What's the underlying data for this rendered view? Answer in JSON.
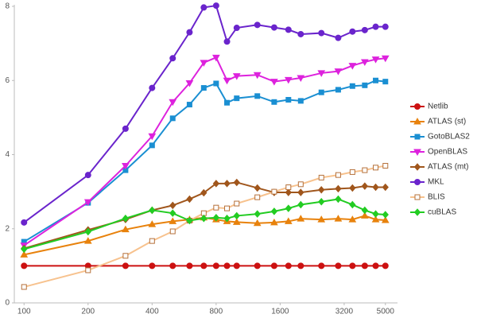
{
  "chart_data": {
    "type": "line",
    "x_scale": "log",
    "legend": "right",
    "grid": false,
    "x": [
      100,
      200,
      300,
      400,
      500,
      600,
      700,
      800,
      900,
      1000,
      1250,
      1500,
      1750,
      2000,
      2500,
      3000,
      3500,
      4000,
      4500,
      5000
    ],
    "xlim": [
      90,
      5700
    ],
    "xticks": [
      100,
      200,
      400,
      800,
      1600,
      3200,
      5000
    ],
    "ylim": [
      0,
      8
    ],
    "yticks": [
      0,
      2,
      4,
      6,
      8
    ],
    "series": [
      {
        "name": "Netlib",
        "color": "#cc1111",
        "marker": "circle",
        "values": [
          1,
          1,
          1,
          1,
          1,
          1,
          1,
          1,
          1,
          1,
          1,
          1,
          1,
          1,
          1,
          1,
          1,
          1,
          1,
          1
        ]
      },
      {
        "name": "ATLAS (st)",
        "color": "#e8820c",
        "marker": "triangle-up",
        "values": [
          1.3,
          1.67,
          1.98,
          2.12,
          2.2,
          2.25,
          2.3,
          2.25,
          2.2,
          2.18,
          2.15,
          2.17,
          2.2,
          2.27,
          2.25,
          2.27,
          2.25,
          2.35,
          2.25,
          2.23
        ]
      },
      {
        "name": "GotoBLAS2",
        "color": "#1a8fd2",
        "marker": "square",
        "values": [
          1.65,
          2.7,
          3.58,
          4.25,
          4.98,
          5.35,
          5.8,
          5.92,
          5.4,
          5.52,
          5.58,
          5.42,
          5.48,
          5.45,
          5.68,
          5.75,
          5.85,
          5.87,
          6.0,
          5.97
        ]
      },
      {
        "name": "OpenBLAS",
        "color": "#dd22dd",
        "marker": "triangle-down",
        "values": [
          1.55,
          2.72,
          3.7,
          4.5,
          5.42,
          5.93,
          6.48,
          6.62,
          6.0,
          6.12,
          6.15,
          5.97,
          6.02,
          6.07,
          6.2,
          6.25,
          6.4,
          6.5,
          6.57,
          6.6
        ]
      },
      {
        "name": "ATLAS (mt)",
        "color": "#a0561c",
        "marker": "diamond",
        "values": [
          1.47,
          1.97,
          2.25,
          2.5,
          2.63,
          2.8,
          2.97,
          3.22,
          3.22,
          3.25,
          3.1,
          2.98,
          2.98,
          2.98,
          3.05,
          3.08,
          3.1,
          3.15,
          3.12,
          3.12
        ]
      },
      {
        "name": "MKL",
        "color": "#6a24cc",
        "marker": "circle",
        "values": [
          2.17,
          3.45,
          4.7,
          5.8,
          6.6,
          7.3,
          7.97,
          8.02,
          7.05,
          7.42,
          7.5,
          7.43,
          7.37,
          7.25,
          7.28,
          7.15,
          7.32,
          7.36,
          7.45,
          7.45
        ]
      },
      {
        "name": "BLIS",
        "color": "#f7c28e",
        "marker": "hollow-square",
        "values": [
          0.43,
          0.88,
          1.27,
          1.67,
          1.93,
          2.22,
          2.42,
          2.57,
          2.55,
          2.68,
          2.85,
          3.0,
          3.12,
          3.2,
          3.38,
          3.45,
          3.53,
          3.58,
          3.65,
          3.7
        ]
      },
      {
        "name": "cuBLAS",
        "color": "#22cc22",
        "marker": "diamond",
        "values": [
          1.45,
          1.92,
          2.28,
          2.5,
          2.42,
          2.22,
          2.28,
          2.3,
          2.28,
          2.35,
          2.4,
          2.47,
          2.55,
          2.65,
          2.73,
          2.8,
          2.65,
          2.5,
          2.4,
          2.38
        ]
      }
    ]
  }
}
